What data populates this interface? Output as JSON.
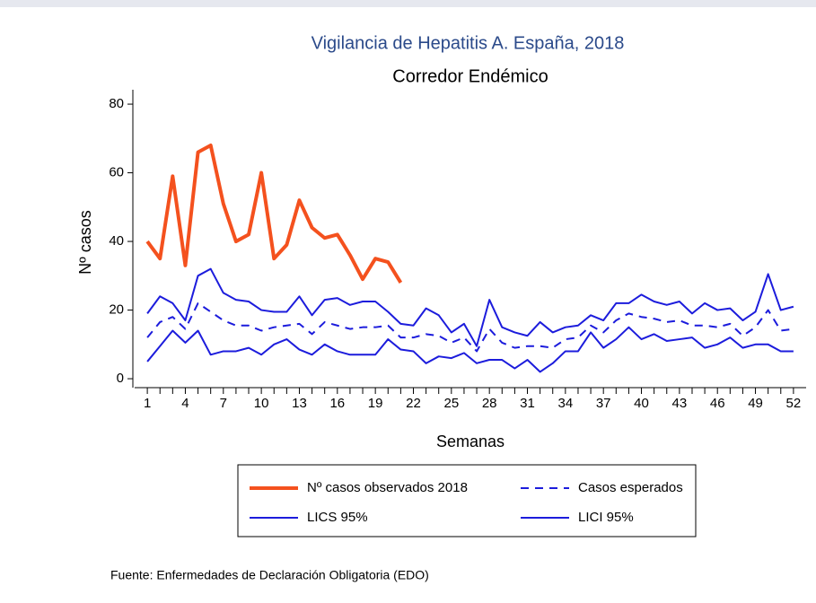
{
  "chart_data": {
    "type": "line",
    "title": "Vigilancia de Hepatitis A. España, 2018",
    "subtitle": "Corredor Endémico",
    "x_label": "Semanas",
    "y_label": "Nº casos",
    "source": "Fuente: Enfermedades de Declaración Obligatoria (EDO)",
    "x": [
      1,
      2,
      3,
      4,
      5,
      6,
      7,
      8,
      9,
      10,
      11,
      12,
      13,
      14,
      15,
      16,
      17,
      18,
      19,
      20,
      21,
      22,
      23,
      24,
      25,
      26,
      27,
      28,
      29,
      30,
      31,
      32,
      33,
      34,
      35,
      36,
      37,
      38,
      39,
      40,
      41,
      42,
      43,
      44,
      45,
      46,
      47,
      48,
      49,
      50,
      51,
      52
    ],
    "xlim": [
      0,
      53
    ],
    "xticks": [
      1,
      4,
      7,
      10,
      13,
      16,
      19,
      22,
      25,
      28,
      31,
      34,
      37,
      40,
      43,
      46,
      49,
      52
    ],
    "xminorticks": [
      2,
      3,
      5,
      6,
      8,
      9,
      11,
      12,
      14,
      15,
      17,
      18,
      20,
      21,
      23,
      24,
      26,
      27,
      29,
      30,
      32,
      33,
      35,
      36,
      38,
      39,
      41,
      42,
      44,
      45,
      47,
      48,
      50,
      51
    ],
    "ylim": [
      -2.6,
      84.2
    ],
    "yticks": [
      0,
      20,
      40,
      60,
      80
    ],
    "series": [
      {
        "name": "Nº casos observados 2018",
        "color": "#f4511e",
        "style": "thick",
        "values": [
          40,
          35,
          59,
          33,
          66,
          68,
          51,
          40,
          42,
          60,
          35,
          39,
          52,
          44,
          41,
          42,
          36,
          29,
          35,
          34,
          28,
          null,
          null,
          null,
          null,
          null,
          null,
          null,
          null,
          null,
          null,
          null,
          null,
          null,
          null,
          null,
          null,
          null,
          null,
          null,
          null,
          null,
          null,
          null,
          null,
          null,
          null,
          null,
          null,
          null,
          null,
          null
        ]
      },
      {
        "name": "Casos esperados",
        "color": "#1c1cdc",
        "style": "dashed",
        "values": [
          12,
          16.5,
          18,
          14.5,
          22,
          19.5,
          17,
          15.5,
          15.5,
          14,
          15,
          15.5,
          16,
          13,
          16.5,
          15.5,
          14.5,
          15,
          15,
          15.5,
          12,
          12,
          13,
          12.5,
          10.5,
          12,
          8,
          14.5,
          10.5,
          9,
          9.5,
          9.5,
          9,
          11.5,
          12,
          15.5,
          13.5,
          17,
          19,
          18,
          17.5,
          16.5,
          17,
          15.5,
          15.5,
          15,
          16,
          12.5,
          15,
          20,
          14,
          14.5
        ]
      },
      {
        "name": "LICS 95%",
        "color": "#1c1cdc",
        "style": "solid",
        "values": [
          19,
          24,
          22,
          17,
          30,
          32,
          25,
          23,
          22.5,
          20,
          19.5,
          19.5,
          24,
          18.5,
          23,
          23.5,
          21.5,
          22.5,
          22.5,
          19.5,
          16,
          15.5,
          20.5,
          18.5,
          13.5,
          16,
          9.5,
          23,
          15,
          13.5,
          12.5,
          16.5,
          13.5,
          15,
          15.5,
          18.5,
          17,
          22,
          22,
          24.5,
          22.5,
          21.5,
          22.5,
          19,
          22,
          20,
          20.5,
          17,
          19.5,
          30.5,
          20,
          21
        ]
      },
      {
        "name": "LICI 95%",
        "color": "#1c1cdc",
        "style": "solid",
        "values": [
          5,
          9.5,
          14,
          10.5,
          14,
          7,
          8,
          8,
          9,
          7,
          10,
          11.5,
          8.5,
          7,
          10,
          8,
          7,
          7,
          7,
          11.5,
          8.5,
          8,
          4.5,
          6.5,
          6,
          7.5,
          4.5,
          5.5,
          5.5,
          3,
          5.5,
          2,
          4.5,
          8,
          8,
          13.5,
          9,
          11.5,
          15,
          11.5,
          13,
          11,
          11.5,
          12,
          9,
          10,
          12,
          9,
          10,
          10,
          8,
          8
        ]
      }
    ]
  }
}
